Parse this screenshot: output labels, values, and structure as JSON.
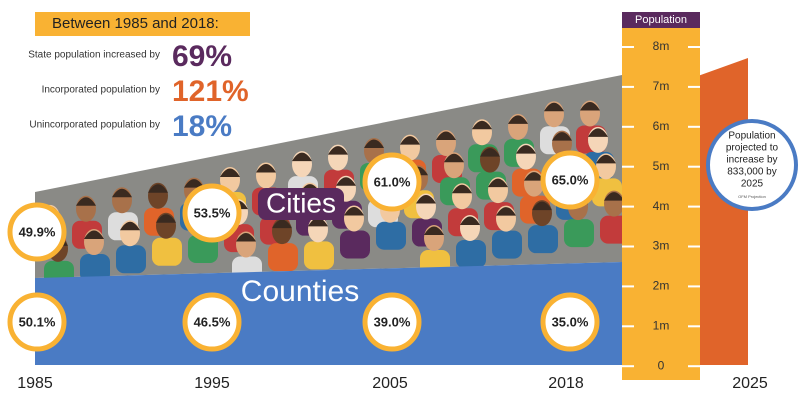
{
  "header": {
    "title": "Between 1985 and 2018:"
  },
  "stats": [
    {
      "label": "State population increased by",
      "value": "69%"
    },
    {
      "label": "Incorporated population by",
      "value": "121%"
    },
    {
      "label": "Unincorporated population by",
      "value": "18%"
    }
  ],
  "axis": {
    "title": "Population",
    "ticks": [
      "8m",
      "7m",
      "6m",
      "5m",
      "4m",
      "3m",
      "2m",
      "1m",
      "0"
    ]
  },
  "cities_label": "Cities",
  "counties_label": "Counties",
  "cities_shares": [
    "49.9%",
    "53.5%",
    "61.0%",
    "65.0%"
  ],
  "counties_shares": [
    "50.1%",
    "46.5%",
    "39.0%",
    "35.0%"
  ],
  "years": [
    "1985",
    "1995",
    "2005",
    "2018",
    "2025"
  ],
  "projection": {
    "lines": [
      "Population",
      "projected to",
      "increase by",
      "833,000 by",
      "2025"
    ],
    "source": "OFM Projection"
  }
}
